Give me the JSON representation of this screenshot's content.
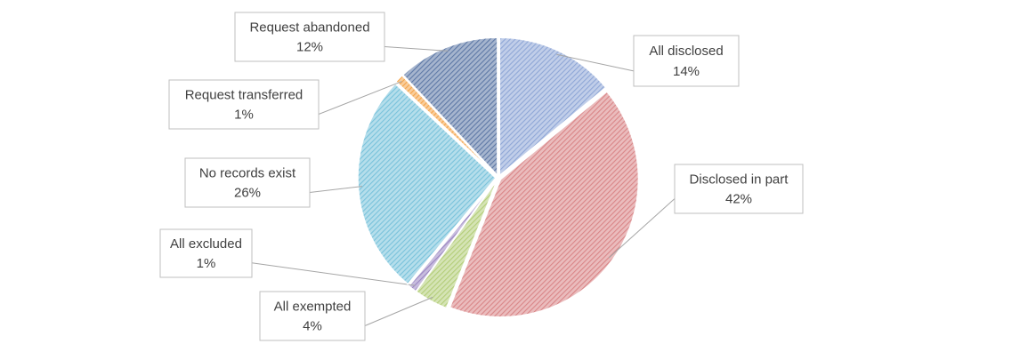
{
  "chart_data": {
    "type": "pie",
    "categories": [
      "All disclosed",
      "Disclosed in part",
      "All exempted",
      "All excluded",
      "No records exist",
      "Request transferred",
      "Request abandoned"
    ],
    "values": [
      14,
      42,
      4,
      1,
      26,
      1,
      12
    ],
    "value_labels": [
      "14%",
      "42%",
      "4%",
      "1%",
      "26%",
      "1%",
      "12%"
    ],
    "colors": [
      "#8ea6d6",
      "#d98587",
      "#b3cd78",
      "#9b86c2",
      "#78c2db",
      "#f4a349",
      "#5d78a6"
    ]
  }
}
